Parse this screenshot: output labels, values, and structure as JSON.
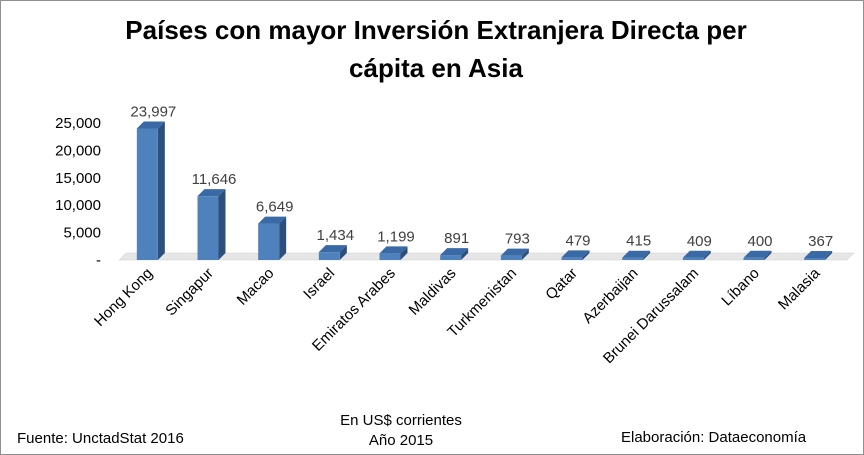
{
  "chart_data": {
    "type": "bar",
    "title_line1": "Países con mayor Inversión Extranjera Directa per",
    "title_line2": "cápita en Asia",
    "categories": [
      "Hong Kong",
      "Singapur",
      "Macao",
      "Israel",
      "Emiratos Arabes",
      "Maldivas",
      "Turkmenistan",
      "Qatar",
      "Azerbaijan",
      "Brunei Darussalam",
      "Líbano",
      "Malasia"
    ],
    "values": [
      23997,
      11646,
      6649,
      1434,
      1199,
      891,
      793,
      479,
      415,
      409,
      400,
      367
    ],
    "data_labels": [
      "23,997",
      "11,646",
      "6,649",
      "1,434",
      "1,199",
      "891",
      "793",
      "479",
      "415",
      "409",
      "400",
      "367"
    ],
    "y_ticks": [
      0,
      5000,
      10000,
      15000,
      20000,
      25000
    ],
    "y_tick_labels": [
      "-",
      "5,000",
      "10,000",
      "15,000",
      "20,000",
      "25,000"
    ],
    "ylim": [
      0,
      25000
    ],
    "grid": false,
    "legend": "none",
    "bar_color": "#4f81bd",
    "bar_side_color": "#2c4f7c",
    "bar_top_color": "#3a6aa5"
  },
  "footer": {
    "source": "Fuente: UnctadStat 2016",
    "units_line1": "En US$ corrientes",
    "units_line2": "Año 2015",
    "credit": "Elaboración: Dataeconomía"
  }
}
